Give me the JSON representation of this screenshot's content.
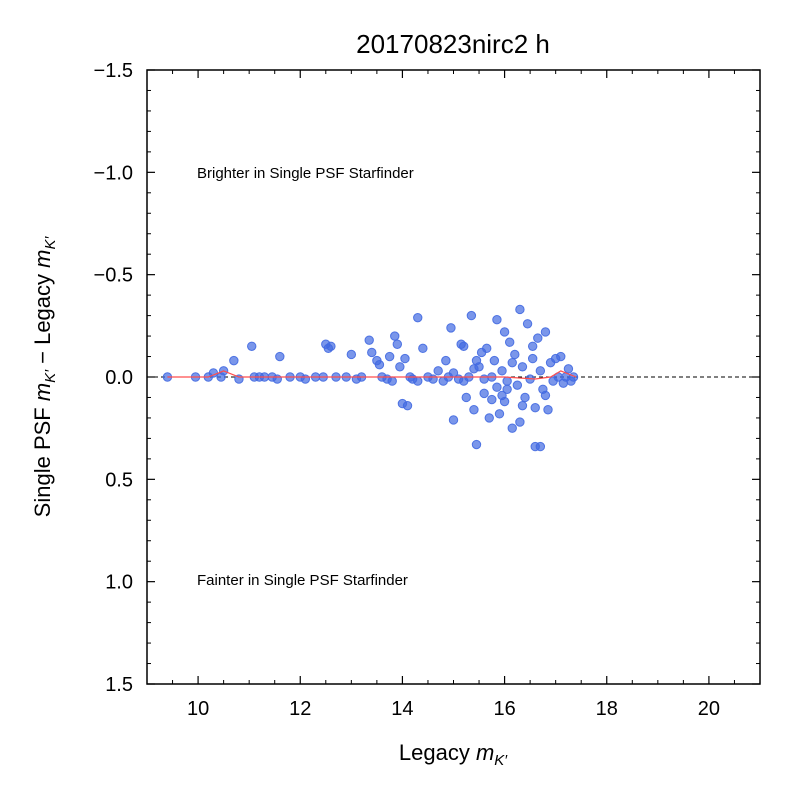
{
  "chart_data": {
    "type": "scatter",
    "title": "20170823nirc2 h",
    "xlabel": "Legacy m_K′",
    "xlabel_parts": {
      "prefix": "Legacy ",
      "var": "m",
      "sub": "K′"
    },
    "ylabel": "Single PSF m_K′ − Legacy m_K′",
    "ylabel_parts": {
      "p1": "Single PSF ",
      "var1": "m",
      "sub1": "K′",
      "mid": " − Legacy ",
      "var2": "m",
      "sub2": "K′"
    },
    "xlim": [
      9.0,
      21.0
    ],
    "ylim": [
      1.5,
      -1.5
    ],
    "y_inverted": true,
    "x_ticks": [
      10,
      12,
      14,
      16,
      18,
      20
    ],
    "x_tick_labels": [
      "10",
      "12",
      "14",
      "16",
      "18",
      "20"
    ],
    "y_ticks": [
      -1.5,
      -1.0,
      -0.5,
      0.0,
      0.5,
      1.0,
      1.5
    ],
    "y_tick_labels": [
      "−1.5",
      "−1.0",
      "−0.5",
      "0.0",
      "0.5",
      "1.0",
      "1.5"
    ],
    "annotations": [
      {
        "text": "Brighter in Single PSF Starfinder",
        "x": 10.0,
        "y": -1.0
      },
      {
        "text": "Fainter in Single PSF Starfinder",
        "x": 10.0,
        "y": 1.0
      }
    ],
    "reference_line": {
      "y": 0.0,
      "style": "dashed",
      "color": "#000000"
    },
    "colors": {
      "points": "#4169e1",
      "running_line": "#ff4d4d"
    },
    "grid": false,
    "series": [
      {
        "marker": "circle",
        "points": [
          [
            9.4,
            0.0
          ],
          [
            9.95,
            0.0
          ],
          [
            10.2,
            0.0
          ],
          [
            10.3,
            -0.02
          ],
          [
            10.45,
            0.0
          ],
          [
            10.5,
            -0.03
          ],
          [
            10.7,
            -0.08
          ],
          [
            10.8,
            0.01
          ],
          [
            11.05,
            -0.15
          ],
          [
            11.1,
            0.0
          ],
          [
            11.2,
            0.0
          ],
          [
            11.3,
            0.0
          ],
          [
            11.45,
            0.0
          ],
          [
            11.55,
            0.01
          ],
          [
            11.6,
            -0.1
          ],
          [
            11.8,
            0.0
          ],
          [
            12.0,
            0.0
          ],
          [
            12.1,
            0.01
          ],
          [
            12.3,
            0.0
          ],
          [
            12.45,
            0.0
          ],
          [
            12.5,
            -0.16
          ],
          [
            12.55,
            -0.14
          ],
          [
            12.6,
            -0.15
          ],
          [
            12.7,
            0.0
          ],
          [
            12.9,
            0.0
          ],
          [
            13.0,
            -0.11
          ],
          [
            13.1,
            0.01
          ],
          [
            13.2,
            0.0
          ],
          [
            13.35,
            -0.18
          ],
          [
            13.4,
            -0.12
          ],
          [
            13.5,
            -0.08
          ],
          [
            13.55,
            -0.06
          ],
          [
            13.6,
            0.0
          ],
          [
            13.7,
            0.01
          ],
          [
            13.75,
            -0.1
          ],
          [
            13.8,
            0.02
          ],
          [
            13.85,
            -0.2
          ],
          [
            13.9,
            -0.16
          ],
          [
            13.95,
            -0.05
          ],
          [
            14.0,
            0.13
          ],
          [
            14.05,
            -0.09
          ],
          [
            14.1,
            0.14
          ],
          [
            14.15,
            0.0
          ],
          [
            14.2,
            0.01
          ],
          [
            14.3,
            -0.29
          ],
          [
            14.3,
            0.02
          ],
          [
            14.4,
            -0.14
          ],
          [
            14.5,
            0.0
          ],
          [
            14.6,
            0.01
          ],
          [
            14.7,
            -0.03
          ],
          [
            14.8,
            0.02
          ],
          [
            14.85,
            -0.08
          ],
          [
            14.9,
            0.0
          ],
          [
            14.95,
            -0.24
          ],
          [
            15.0,
            0.21
          ],
          [
            15.0,
            -0.02
          ],
          [
            15.1,
            0.01
          ],
          [
            15.15,
            -0.16
          ],
          [
            15.2,
            0.02
          ],
          [
            15.25,
            0.1
          ],
          [
            15.3,
            0.0
          ],
          [
            15.35,
            -0.3
          ],
          [
            15.4,
            -0.04
          ],
          [
            15.4,
            0.16
          ],
          [
            15.45,
            0.33
          ],
          [
            15.5,
            -0.05
          ],
          [
            15.55,
            -0.12
          ],
          [
            15.6,
            0.01
          ],
          [
            15.65,
            -0.14
          ],
          [
            15.7,
            0.2
          ],
          [
            15.75,
            0.0
          ],
          [
            15.8,
            -0.08
          ],
          [
            15.85,
            0.05
          ],
          [
            15.85,
            -0.28
          ],
          [
            15.9,
            0.18
          ],
          [
            15.95,
            -0.03
          ],
          [
            16.0,
            -0.22
          ],
          [
            16.0,
            0.12
          ],
          [
            16.05,
            0.02
          ],
          [
            16.1,
            -0.17
          ],
          [
            16.15,
            0.25
          ],
          [
            16.2,
            -0.11
          ],
          [
            16.25,
            0.04
          ],
          [
            16.3,
            0.22
          ],
          [
            16.3,
            -0.33
          ],
          [
            16.35,
            -0.05
          ],
          [
            16.4,
            0.1
          ],
          [
            16.45,
            -0.26
          ],
          [
            16.5,
            0.01
          ],
          [
            16.55,
            -0.09
          ],
          [
            16.6,
            0.15
          ],
          [
            16.6,
            0.34
          ],
          [
            16.65,
            -0.19
          ],
          [
            16.7,
            0.34
          ],
          [
            16.7,
            -0.03
          ],
          [
            16.75,
            0.06
          ],
          [
            16.8,
            -0.22
          ],
          [
            16.85,
            0.16
          ],
          [
            16.9,
            -0.07
          ],
          [
            16.95,
            0.02
          ],
          [
            17.0,
            -0.09
          ],
          [
            17.05,
            0.0
          ],
          [
            17.1,
            -0.1
          ],
          [
            17.15,
            0.03
          ],
          [
            17.2,
            0.0
          ],
          [
            17.25,
            -0.04
          ],
          [
            17.3,
            0.02
          ],
          [
            17.35,
            0.0
          ],
          [
            15.2,
            -0.15
          ],
          [
            15.6,
            0.08
          ],
          [
            15.95,
            0.09
          ],
          [
            16.15,
            -0.07
          ],
          [
            16.35,
            0.14
          ],
          [
            16.55,
            -0.15
          ],
          [
            16.8,
            0.09
          ],
          [
            15.45,
            -0.08
          ],
          [
            15.75,
            0.11
          ],
          [
            16.05,
            0.06
          ]
        ]
      }
    ],
    "running_median": {
      "x": [
        9.4,
        9.8,
        10.2,
        10.5,
        10.8,
        11.2,
        12.0,
        13.0,
        14.0,
        15.0,
        16.0,
        16.6,
        16.9,
        17.1,
        17.4
      ],
      "y": [
        0.0,
        0.0,
        0.0,
        -0.03,
        0.0,
        0.0,
        0.0,
        0.0,
        0.0,
        0.0,
        0.0,
        0.01,
        0.0,
        -0.03,
        0.0
      ]
    }
  }
}
